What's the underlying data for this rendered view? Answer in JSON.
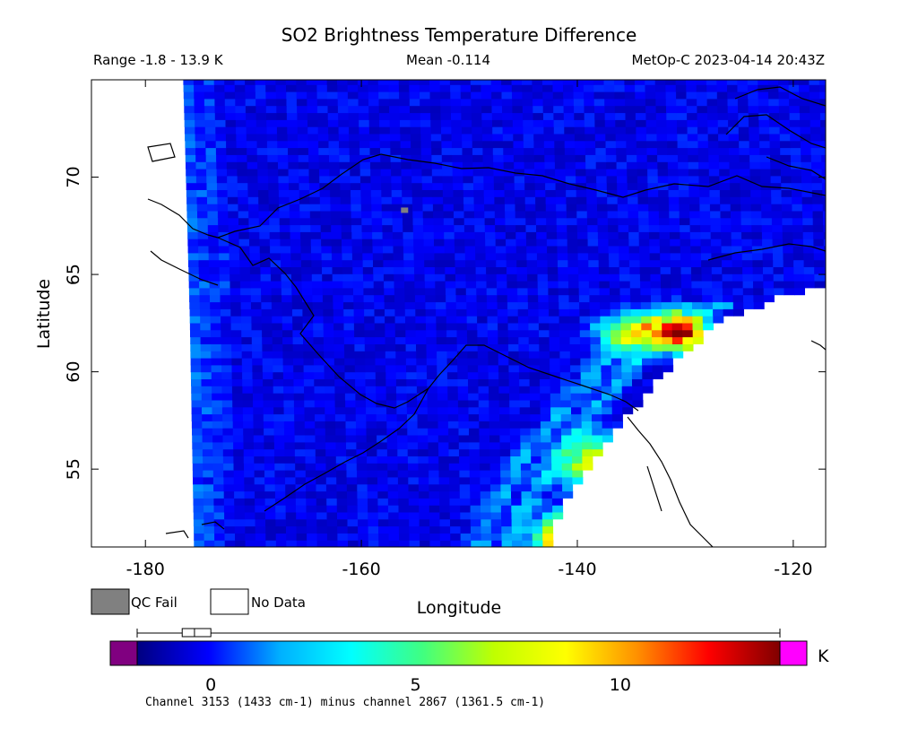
{
  "chart_data": {
    "type": "heatmap",
    "title": "SO2 Brightness Temperature Difference",
    "range_text": "Range -1.8 - 13.9 K",
    "mean_text": "Mean -0.114",
    "satellite_text": "MetOp-C 2023-04-14 20:43Z",
    "xlabel": "Longitude",
    "ylabel": "Latitude",
    "xlim": [
      -185,
      -117
    ],
    "ylim": [
      51,
      75
    ],
    "xticks": [
      -180,
      -160,
      -140,
      -120
    ],
    "yticks": [
      55,
      60,
      65,
      70
    ],
    "grid": false,
    "legend": [
      {
        "label": "QC Fail",
        "color": "#808080"
      },
      {
        "label": "No Data",
        "color": "#ffffff"
      }
    ],
    "colorbar": {
      "unit": "K",
      "min": -1.8,
      "max": 13.9,
      "ticks": [
        0,
        5,
        10
      ],
      "under_color": "#800080",
      "over_color": "#ff00ff",
      "stops": [
        "#000080",
        "#0000ff",
        "#00b0ff",
        "#00ffff",
        "#40ff80",
        "#c0ff00",
        "#ffff00",
        "#ff9000",
        "#ff0000",
        "#800000"
      ],
      "boxplot": {
        "min": -1.8,
        "q1": -0.7,
        "median": -0.4,
        "q3": -0.0,
        "max": 13.9
      }
    },
    "caption": "Channel 3153 (1433 cm-1) minus channel 2867 (1361.5 cm-1)",
    "swath": {
      "west_edge": [
        [
          -176.5,
          75
        ],
        [
          -175.9,
          63
        ],
        [
          -175.5,
          51
        ]
      ],
      "east_edge": [
        [
          -117,
          64.5
        ],
        [
          -122,
          63.7
        ],
        [
          -127,
          62.5
        ],
        [
          -131,
          60.5
        ],
        [
          -135,
          58
        ],
        [
          -138.5,
          55.5
        ],
        [
          -141.5,
          53
        ],
        [
          -142.8,
          51
        ]
      ],
      "background_value": -0.3
    },
    "hotspots": [
      {
        "lon": -133.0,
        "lat": 62.2,
        "value": 6.5
      },
      {
        "lon": -130.0,
        "lat": 62.0,
        "value": 12.5
      },
      {
        "lon": -136.0,
        "lat": 62.0,
        "value": 6.0
      },
      {
        "lon": -139.5,
        "lat": 55.0,
        "value": 6.5
      },
      {
        "lon": -140.5,
        "lat": 52.0,
        "value": 7.5
      },
      {
        "lon": -141.5,
        "lat": 51.3,
        "value": 11.0
      },
      {
        "lon": -138.5,
        "lat": 56.0,
        "value": 4.5
      }
    ],
    "qc_fail": [
      {
        "lon": -156.0,
        "lat": 68.3
      }
    ]
  }
}
